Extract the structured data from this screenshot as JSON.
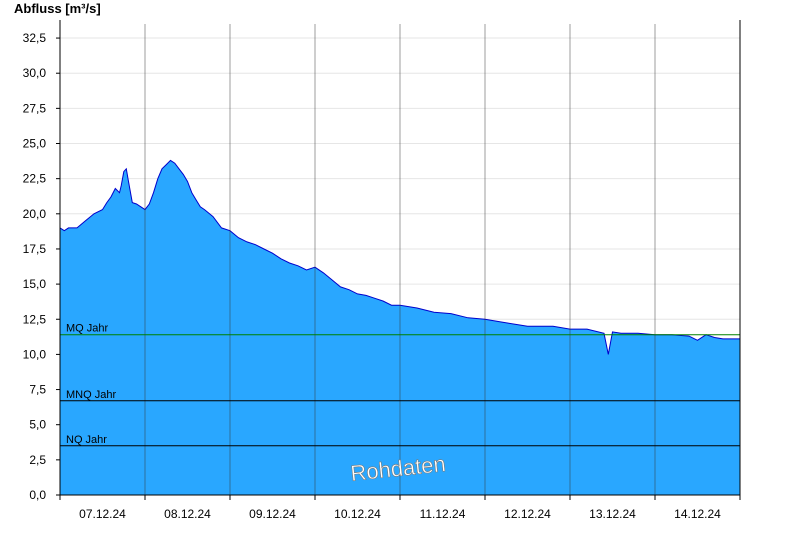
{
  "chart_data": {
    "type": "area",
    "ylabel": "Abfluss [m³/s]",
    "ylim": [
      0,
      33.5
    ],
    "yticks": [
      0,
      2.5,
      5,
      7.5,
      10,
      12.5,
      15,
      17.5,
      20,
      22.5,
      25,
      27.5,
      30,
      32.5
    ],
    "ytick_labels": [
      "0,0",
      "2,5",
      "5,0",
      "7,5",
      "10,0",
      "12,5",
      "15,0",
      "17,5",
      "20,0",
      "22,5",
      "25,0",
      "27,5",
      "30,0",
      "32,5"
    ],
    "xlim": [
      0,
      8
    ],
    "day_labels": [
      "07.12.24",
      "08.12.24",
      "09.12.24",
      "10.12.24",
      "11.12.24",
      "12.12.24",
      "13.12.24",
      "14.12.24"
    ],
    "grid": true,
    "watermark": "Rohdaten",
    "colors": {
      "fill": "#29a7ff",
      "line": "#0000cc",
      "mq": "#008000",
      "ref": "#000000"
    },
    "reference_lines": [
      {
        "name": "MQ Jahr",
        "value": 11.4,
        "color": "#008000"
      },
      {
        "name": "MNQ Jahr",
        "value": 6.7,
        "color": "#000000"
      },
      {
        "name": "NQ Jahr",
        "value": 3.5,
        "color": "#000000"
      }
    ],
    "series": [
      {
        "x": [
          0,
          0.05,
          0.1,
          0.2,
          0.3,
          0.4,
          0.5,
          0.55,
          0.6,
          0.65,
          0.7,
          0.72,
          0.75,
          0.78,
          0.8,
          0.85,
          0.9,
          0.95,
          1.0,
          1.05,
          1.1,
          1.15,
          1.2,
          1.25,
          1.3,
          1.35,
          1.4,
          1.45,
          1.5,
          1.55,
          1.6,
          1.65,
          1.7,
          1.8,
          1.9,
          2.0,
          2.1,
          2.2,
          2.3,
          2.4,
          2.5,
          2.6,
          2.7,
          2.8,
          2.9,
          3.0,
          3.1,
          3.2,
          3.3,
          3.4,
          3.5,
          3.6,
          3.7,
          3.8,
          3.9,
          4.0,
          4.2,
          4.4,
          4.6,
          4.8,
          5.0,
          5.2,
          5.4,
          5.5,
          5.6,
          5.8,
          6.0,
          6.2,
          6.4,
          6.45,
          6.5,
          6.6,
          6.8,
          7.0,
          7.2,
          7.4,
          7.5,
          7.6,
          7.7,
          7.8,
          8.0
        ],
        "y": [
          19.0,
          18.8,
          19.0,
          19.0,
          19.5,
          20.0,
          20.3,
          20.8,
          21.2,
          21.8,
          21.5,
          22.0,
          23.0,
          23.2,
          22.5,
          20.8,
          20.7,
          20.5,
          20.3,
          20.7,
          21.5,
          22.5,
          23.2,
          23.5,
          23.8,
          23.6,
          23.2,
          22.8,
          22.3,
          21.5,
          21.0,
          20.5,
          20.3,
          19.8,
          19.0,
          18.8,
          18.3,
          18.0,
          17.8,
          17.5,
          17.2,
          16.8,
          16.5,
          16.3,
          16.0,
          16.2,
          15.8,
          15.3,
          14.8,
          14.6,
          14.3,
          14.2,
          14.0,
          13.8,
          13.5,
          13.5,
          13.3,
          13.0,
          12.9,
          12.6,
          12.5,
          12.3,
          12.1,
          12.0,
          12.0,
          12.0,
          11.8,
          11.8,
          11.5,
          10.0,
          11.6,
          11.5,
          11.5,
          11.4,
          11.4,
          11.3,
          11.0,
          11.4,
          11.2,
          11.1,
          11.1
        ]
      }
    ]
  }
}
